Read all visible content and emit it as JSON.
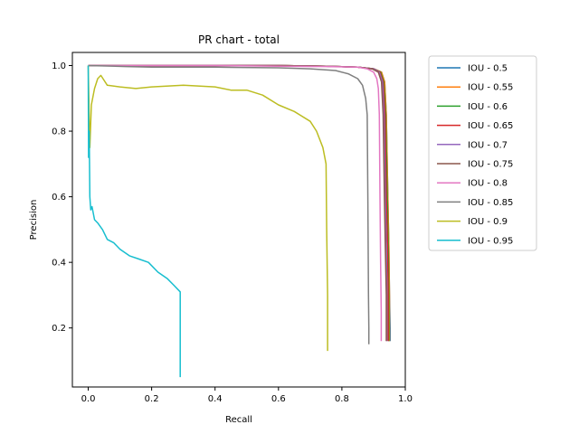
{
  "chart_data": {
    "type": "line",
    "title": "PR chart - total",
    "xlabel": "Recall",
    "ylabel": "Precision",
    "xlim": [
      -0.05,
      1.0
    ],
    "ylim": [
      0.02,
      1.04
    ],
    "xticks": [
      0.0,
      0.2,
      0.4,
      0.6,
      0.8,
      1.0
    ],
    "yticks": [
      0.2,
      0.4,
      0.6,
      0.8,
      1.0
    ],
    "xtick_labels": [
      "0.0",
      "0.2",
      "0.4",
      "0.6",
      "0.8",
      "1.0"
    ],
    "ytick_labels": [
      "0.2",
      "0.4",
      "0.6",
      "0.8",
      "1.0"
    ],
    "grid": false,
    "legend_position": "outside-right",
    "series": [
      {
        "name": "IOU - 0.5",
        "color": "#1f77b4",
        "x": [
          0.0,
          0.2,
          0.4,
          0.6,
          0.75,
          0.85,
          0.9,
          0.925,
          0.935,
          0.94,
          0.945,
          0.948,
          0.95,
          0.952,
          0.952
        ],
        "y": [
          1.0,
          1.0,
          1.0,
          1.0,
          0.998,
          0.995,
          0.99,
          0.98,
          0.95,
          0.85,
          0.6,
          0.45,
          0.3,
          0.2,
          0.16
        ]
      },
      {
        "name": "IOU - 0.55",
        "color": "#ff7f0e",
        "x": [
          0.0,
          0.2,
          0.4,
          0.6,
          0.75,
          0.85,
          0.9,
          0.925,
          0.935,
          0.94,
          0.945,
          0.948,
          0.95,
          0.95
        ],
        "y": [
          1.0,
          1.0,
          1.0,
          1.0,
          0.998,
          0.995,
          0.99,
          0.98,
          0.95,
          0.85,
          0.6,
          0.45,
          0.3,
          0.16
        ]
      },
      {
        "name": "IOU - 0.6",
        "color": "#2ca02c",
        "x": [
          0.0,
          0.2,
          0.4,
          0.6,
          0.75,
          0.85,
          0.9,
          0.922,
          0.932,
          0.938,
          0.943,
          0.946,
          0.948,
          0.948
        ],
        "y": [
          1.0,
          1.0,
          1.0,
          1.0,
          0.998,
          0.995,
          0.99,
          0.98,
          0.95,
          0.85,
          0.6,
          0.45,
          0.3,
          0.16
        ]
      },
      {
        "name": "IOU - 0.65",
        "color": "#d62728",
        "x": [
          0.0,
          0.2,
          0.4,
          0.6,
          0.75,
          0.85,
          0.9,
          0.92,
          0.93,
          0.936,
          0.94,
          0.944,
          0.946,
          0.946
        ],
        "y": [
          1.0,
          1.0,
          1.0,
          1.0,
          0.998,
          0.995,
          0.99,
          0.98,
          0.95,
          0.85,
          0.6,
          0.45,
          0.3,
          0.16
        ]
      },
      {
        "name": "IOU - 0.7",
        "color": "#9467bd",
        "x": [
          0.0,
          0.2,
          0.4,
          0.6,
          0.75,
          0.85,
          0.9,
          0.918,
          0.928,
          0.933,
          0.937,
          0.94,
          0.942,
          0.942
        ],
        "y": [
          1.0,
          1.0,
          1.0,
          1.0,
          0.998,
          0.995,
          0.99,
          0.98,
          0.95,
          0.85,
          0.6,
          0.45,
          0.3,
          0.16
        ]
      },
      {
        "name": "IOU - 0.75",
        "color": "#8c564b",
        "x": [
          0.0,
          0.2,
          0.4,
          0.6,
          0.75,
          0.85,
          0.895,
          0.915,
          0.925,
          0.93,
          0.934,
          0.937,
          0.94,
          0.94
        ],
        "y": [
          1.0,
          1.0,
          1.0,
          1.0,
          0.998,
          0.995,
          0.99,
          0.98,
          0.95,
          0.85,
          0.6,
          0.45,
          0.3,
          0.16
        ]
      },
      {
        "name": "IOU - 0.8",
        "color": "#e377c2",
        "x": [
          0.0,
          0.2,
          0.4,
          0.6,
          0.75,
          0.85,
          0.88,
          0.9,
          0.91,
          0.915,
          0.918,
          0.92,
          0.922,
          0.924,
          0.924
        ],
        "y": [
          1.0,
          1.0,
          1.0,
          0.998,
          0.997,
          0.995,
          0.99,
          0.98,
          0.96,
          0.93,
          0.85,
          0.6,
          0.4,
          0.25,
          0.16
        ]
      },
      {
        "name": "IOU - 0.85",
        "color": "#7f7f7f",
        "x": [
          0.0,
          0.12,
          0.2,
          0.4,
          0.6,
          0.7,
          0.78,
          0.82,
          0.85,
          0.865,
          0.875,
          0.88,
          0.882,
          0.884,
          0.885,
          0.885
        ],
        "y": [
          1.0,
          0.997,
          0.995,
          0.995,
          0.993,
          0.99,
          0.985,
          0.975,
          0.96,
          0.94,
          0.9,
          0.85,
          0.6,
          0.3,
          0.2,
          0.15
        ]
      },
      {
        "name": "IOU - 0.9",
        "color": "#bcbd22",
        "x": [
          0.0,
          0.005,
          0.01,
          0.02,
          0.03,
          0.04,
          0.06,
          0.1,
          0.15,
          0.2,
          0.3,
          0.4,
          0.45,
          0.5,
          0.55,
          0.6,
          0.65,
          0.7,
          0.72,
          0.74,
          0.75,
          0.752,
          0.755,
          0.755
        ],
        "y": [
          1.0,
          0.75,
          0.88,
          0.93,
          0.96,
          0.97,
          0.94,
          0.935,
          0.93,
          0.935,
          0.94,
          0.935,
          0.925,
          0.925,
          0.91,
          0.88,
          0.86,
          0.83,
          0.8,
          0.75,
          0.7,
          0.5,
          0.3,
          0.13
        ]
      },
      {
        "name": "IOU - 0.95",
        "color": "#17becf",
        "x": [
          0.0,
          0.001,
          0.003,
          0.005,
          0.008,
          0.012,
          0.02,
          0.03,
          0.045,
          0.06,
          0.08,
          0.1,
          0.13,
          0.16,
          0.19,
          0.22,
          0.25,
          0.27,
          0.29,
          0.29,
          0.29
        ],
        "y": [
          1.0,
          0.72,
          0.8,
          0.6,
          0.56,
          0.57,
          0.53,
          0.52,
          0.5,
          0.47,
          0.46,
          0.44,
          0.42,
          0.41,
          0.4,
          0.37,
          0.35,
          0.33,
          0.31,
          0.2,
          0.05
        ]
      }
    ]
  }
}
